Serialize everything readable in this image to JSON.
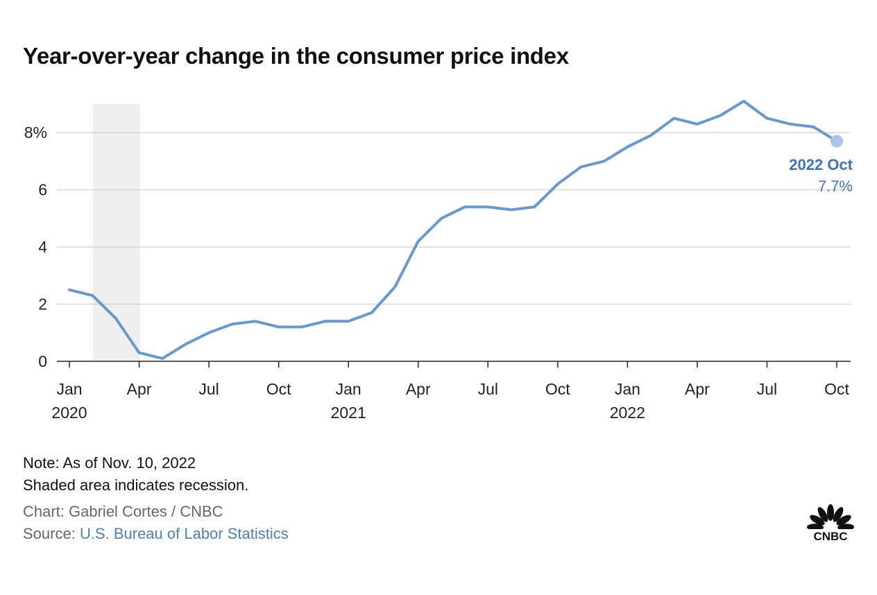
{
  "title": "Year-over-year change in the consumer price index",
  "chart_data": {
    "type": "line",
    "title": "Year-over-year change in the consumer price index",
    "y_unit_suffix": "%",
    "ylim": [
      0,
      9
    ],
    "grid": true,
    "y_ticks": [
      {
        "value": 0,
        "label": "0"
      },
      {
        "value": 2,
        "label": "2"
      },
      {
        "value": 4,
        "label": "4"
      },
      {
        "value": 6,
        "label": "6"
      },
      {
        "value": 8,
        "label": "8%"
      }
    ],
    "x_ticks": [
      {
        "month": "2020-01",
        "label": "Jan",
        "year_label": "2020"
      },
      {
        "month": "2020-04",
        "label": "Apr",
        "year_label": ""
      },
      {
        "month": "2020-07",
        "label": "Jul",
        "year_label": ""
      },
      {
        "month": "2020-10",
        "label": "Oct",
        "year_label": ""
      },
      {
        "month": "2021-01",
        "label": "Jan",
        "year_label": "2021"
      },
      {
        "month": "2021-04",
        "label": "Apr",
        "year_label": ""
      },
      {
        "month": "2021-07",
        "label": "Jul",
        "year_label": ""
      },
      {
        "month": "2021-10",
        "label": "Oct",
        "year_label": ""
      },
      {
        "month": "2022-01",
        "label": "Jan",
        "year_label": "2022"
      },
      {
        "month": "2022-04",
        "label": "Apr",
        "year_label": ""
      },
      {
        "month": "2022-07",
        "label": "Jul",
        "year_label": ""
      },
      {
        "month": "2022-10",
        "label": "Oct",
        "year_label": ""
      }
    ],
    "recession": {
      "start": "2020-02",
      "end": "2020-04"
    },
    "series": [
      {
        "color": "#6699d2",
        "points": [
          {
            "x": "2020-01",
            "y": 2.5
          },
          {
            "x": "2020-02",
            "y": 2.3
          },
          {
            "x": "2020-03",
            "y": 1.5
          },
          {
            "x": "2020-04",
            "y": 0.3
          },
          {
            "x": "2020-05",
            "y": 0.1
          },
          {
            "x": "2020-06",
            "y": 0.6
          },
          {
            "x": "2020-07",
            "y": 1.0
          },
          {
            "x": "2020-08",
            "y": 1.3
          },
          {
            "x": "2020-09",
            "y": 1.4
          },
          {
            "x": "2020-10",
            "y": 1.2
          },
          {
            "x": "2020-11",
            "y": 1.2
          },
          {
            "x": "2020-12",
            "y": 1.4
          },
          {
            "x": "2021-01",
            "y": 1.4
          },
          {
            "x": "2021-02",
            "y": 1.7
          },
          {
            "x": "2021-03",
            "y": 2.6
          },
          {
            "x": "2021-04",
            "y": 4.2
          },
          {
            "x": "2021-05",
            "y": 5.0
          },
          {
            "x": "2021-06",
            "y": 5.4
          },
          {
            "x": "2021-07",
            "y": 5.4
          },
          {
            "x": "2021-08",
            "y": 5.3
          },
          {
            "x": "2021-09",
            "y": 5.4
          },
          {
            "x": "2021-10",
            "y": 6.2
          },
          {
            "x": "2021-11",
            "y": 6.8
          },
          {
            "x": "2021-12",
            "y": 7.0
          },
          {
            "x": "2022-01",
            "y": 7.5
          },
          {
            "x": "2022-02",
            "y": 7.9
          },
          {
            "x": "2022-03",
            "y": 8.5
          },
          {
            "x": "2022-04",
            "y": 8.3
          },
          {
            "x": "2022-05",
            "y": 8.6
          },
          {
            "x": "2022-06",
            "y": 9.1
          },
          {
            "x": "2022-07",
            "y": 8.5
          },
          {
            "x": "2022-08",
            "y": 8.3
          },
          {
            "x": "2022-09",
            "y": 8.2
          },
          {
            "x": "2022-10",
            "y": 7.7
          }
        ]
      }
    ],
    "annotation": {
      "x": "2022-10",
      "y": 7.7,
      "label": "2022 Oct",
      "value_label": "7.7%"
    }
  },
  "footer": {
    "note": "Note: As of Nov. 10, 2022",
    "recession_note": "Shaded area indicates recession.",
    "credit": "Chart: Gabriel Cortes / CNBC",
    "source_prefix": "Source: ",
    "source_link": "U.S. Bureau of Labor Statistics"
  },
  "logo": {
    "text": "CNBC"
  },
  "colors": {
    "line": "#6699d2",
    "annotation_text": "#3f73b5",
    "recession": "#efefef",
    "grid": "#cfcfcf"
  }
}
